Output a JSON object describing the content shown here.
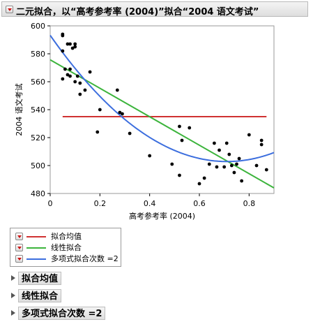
{
  "report": {
    "title": "二元拟合，以“高考参考率 (2004)”拟合“2004 语文考试”"
  },
  "legend": {
    "items": [
      {
        "label": "拟合均值",
        "color": "#d03232"
      },
      {
        "label": "线性拟合",
        "color": "#3cb43c"
      },
      {
        "label": "多项式拟合次数 =2",
        "color": "#3c6ede"
      }
    ]
  },
  "sections": [
    {
      "label": "拟合均值"
    },
    {
      "label": "线性拟合"
    },
    {
      "label": "多项式拟合次数 =2"
    }
  ],
  "chart_data": {
    "type": "scatter",
    "xlabel": "高考参考率 (2004)",
    "ylabel": "2004 语文考试",
    "xlim": [
      0,
      0.9
    ],
    "ylim": [
      480,
      600
    ],
    "xticks": [
      0,
      0.2,
      0.4,
      0.6,
      0.8
    ],
    "yticks": [
      480,
      500,
      520,
      540,
      560,
      580,
      600
    ],
    "grid": false,
    "point_color": "#000000",
    "points": [
      [
        0.05,
        594
      ],
      [
        0.05,
        593
      ],
      [
        0.05,
        582
      ],
      [
        0.06,
        569
      ],
      [
        0.05,
        562
      ],
      [
        0.07,
        565
      ],
      [
        0.07,
        587
      ],
      [
        0.08,
        587
      ],
      [
        0.08,
        569
      ],
      [
        0.08,
        564
      ],
      [
        0.09,
        584
      ],
      [
        0.1,
        585
      ],
      [
        0.1,
        587
      ],
      [
        0.1,
        560
      ],
      [
        0.11,
        564
      ],
      [
        0.12,
        559
      ],
      [
        0.12,
        551
      ],
      [
        0.14,
        554
      ],
      [
        0.16,
        567
      ],
      [
        0.19,
        524
      ],
      [
        0.2,
        540
      ],
      [
        0.27,
        554
      ],
      [
        0.28,
        538
      ],
      [
        0.29,
        537
      ],
      [
        0.32,
        523
      ],
      [
        0.4,
        507
      ],
      [
        0.49,
        501
      ],
      [
        0.52,
        528
      ],
      [
        0.52,
        493
      ],
      [
        0.53,
        518
      ],
      [
        0.56,
        527
      ],
      [
        0.6,
        487
      ],
      [
        0.62,
        491
      ],
      [
        0.64,
        501
      ],
      [
        0.66,
        516
      ],
      [
        0.67,
        499
      ],
      [
        0.68,
        511
      ],
      [
        0.7,
        499
      ],
      [
        0.71,
        516
      ],
      [
        0.72,
        508
      ],
      [
        0.73,
        500
      ],
      [
        0.74,
        495
      ],
      [
        0.75,
        501
      ],
      [
        0.76,
        505
      ],
      [
        0.77,
        489
      ],
      [
        0.8,
        522
      ],
      [
        0.83,
        500
      ],
      [
        0.85,
        518
      ],
      [
        0.85,
        515
      ],
      [
        0.87,
        497
      ]
    ],
    "fits": [
      {
        "name": "拟合均值",
        "kind": "mean",
        "color": "#d03232",
        "x_range": [
          0.05,
          0.87
        ],
        "y": 535
      },
      {
        "name": "线性拟合",
        "kind": "linear",
        "color": "#3cb43c",
        "x_range": [
          0,
          0.9
        ],
        "intercept": 575.7,
        "slope": -101.9
      },
      {
        "name": "多项式拟合次数 =2",
        "kind": "quadratic",
        "color": "#3c6ede",
        "x_range": [
          0,
          0.9
        ],
        "coef": [
          593.2,
          -254.1,
          178.7
        ]
      }
    ]
  }
}
